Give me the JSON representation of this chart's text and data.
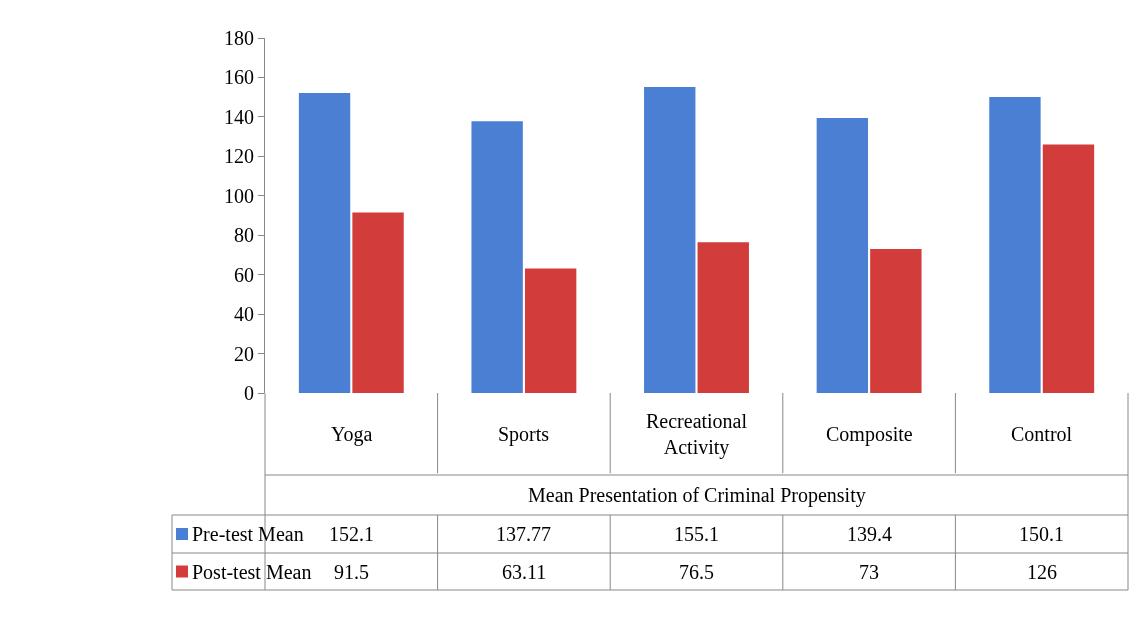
{
  "chart_data": {
    "type": "bar",
    "xlabel": "Mean Presentation of Criminal Propensity",
    "categories": [
      "Yoga",
      "Sports",
      "Recreational Activity",
      "Composite",
      "Control"
    ],
    "series": [
      {
        "name": "Pre-test Mean",
        "color": "#4a7fd4",
        "values": [
          152.1,
          137.77,
          155.1,
          139.4,
          150.1
        ]
      },
      {
        "name": "Post-test Mean",
        "color": "#d23c3a",
        "values": [
          91.5,
          63.11,
          76.5,
          73,
          126
        ]
      }
    ],
    "ylim": [
      0,
      180
    ],
    "yticks": [
      0,
      20,
      40,
      60,
      80,
      100,
      120,
      140,
      160,
      180
    ],
    "data_labels": true,
    "legend": "bottom left"
  }
}
